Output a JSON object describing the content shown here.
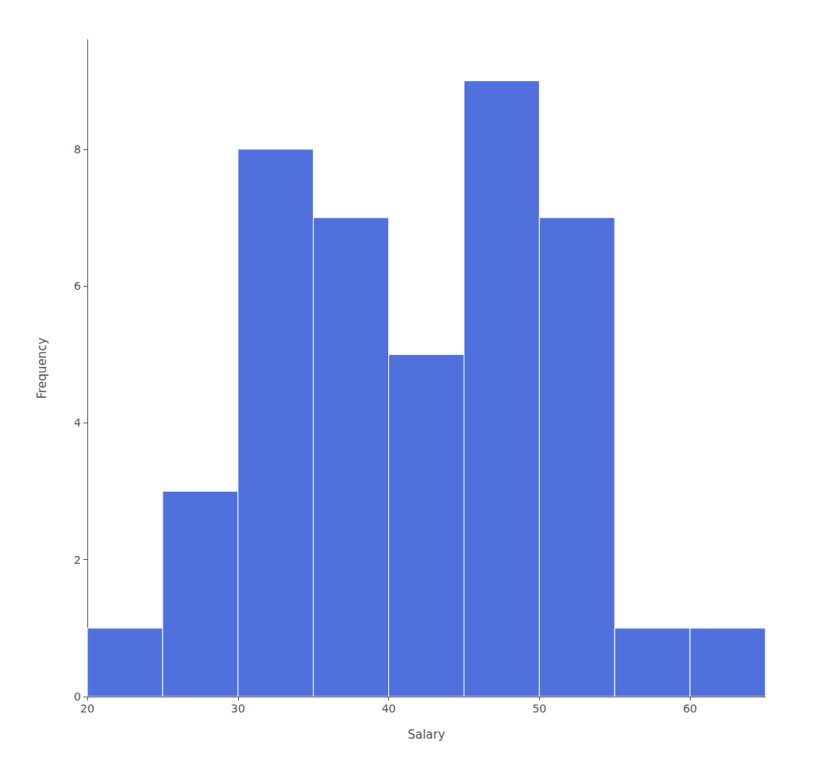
{
  "chart_data": {
    "type": "histogram",
    "bins": [
      20,
      25,
      30,
      35,
      40,
      45,
      50,
      55,
      60,
      65
    ],
    "values": [
      1,
      3,
      8,
      7,
      5,
      9,
      7,
      1,
      1
    ],
    "xlabel": "Salary",
    "ylabel": "Frequency",
    "xlim": [
      20,
      65
    ],
    "ylim": [
      0,
      9.6
    ],
    "xticks": [
      20,
      30,
      40,
      50,
      60
    ],
    "yticks": [
      0,
      2,
      4,
      6,
      8
    ],
    "grid": false
  }
}
